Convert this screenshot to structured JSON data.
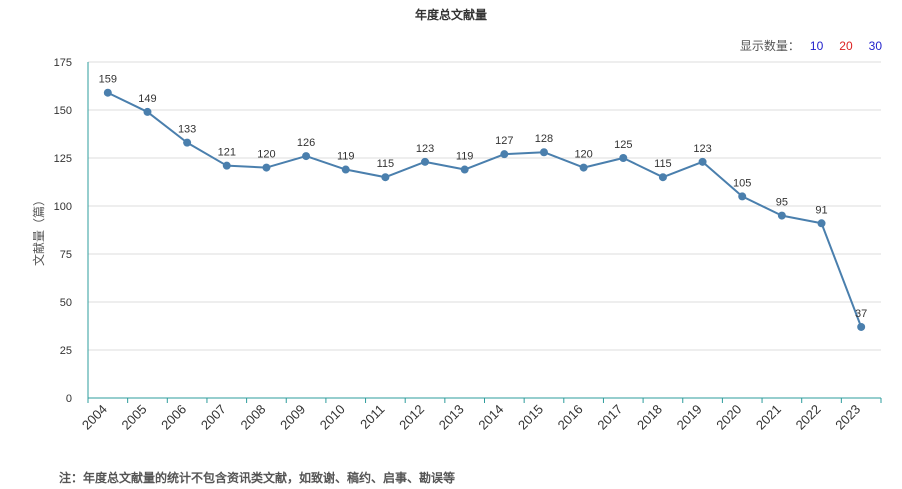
{
  "chart_title": "年度总文献量",
  "display_count": {
    "label": "显示数量：",
    "options": [
      {
        "label": "10",
        "color": "#2222cc"
      },
      {
        "label": "20",
        "color": "#dd2222"
      },
      {
        "label": "30",
        "color": "#2222cc"
      }
    ]
  },
  "footnote": "注：年度总文献量的统计不包含资讯类文献，如致谢、稿约、启事、勘误等",
  "colors": {
    "line": "#4a7fad",
    "axis": "#2e9c9c",
    "grid": "#dddddd"
  },
  "chart_data": {
    "type": "line",
    "title": "年度总文献量",
    "xlabel": "",
    "ylabel": "文献量（篇）",
    "categories": [
      "2004",
      "2005",
      "2006",
      "2007",
      "2008",
      "2009",
      "2010",
      "2011",
      "2012",
      "2013",
      "2014",
      "2015",
      "2016",
      "2017",
      "2018",
      "2019",
      "2020",
      "2021",
      "2022",
      "2023"
    ],
    "values": [
      159,
      149,
      133,
      121,
      120,
      126,
      119,
      115,
      123,
      119,
      127,
      128,
      120,
      125,
      115,
      123,
      105,
      95,
      91,
      37
    ],
    "ylim": [
      0,
      175
    ],
    "yticks": [
      0,
      25,
      50,
      75,
      100,
      125,
      150,
      175
    ],
    "grid": true,
    "data_labels": true
  }
}
